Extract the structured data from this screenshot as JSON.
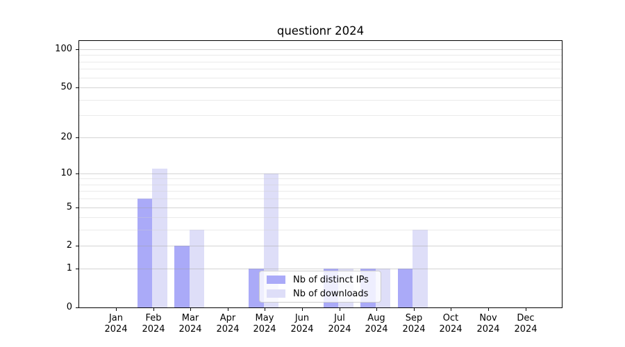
{
  "title": "questionr 2024",
  "legend": {
    "items": [
      {
        "label": "Nb of distinct IPs",
        "color": "#aaaaf8"
      },
      {
        "label": "Nb of downloads",
        "color": "#dedef8"
      }
    ]
  },
  "chart_data": {
    "type": "bar",
    "title": "questionr 2024",
    "categories": [
      "Jan",
      "Feb",
      "Mar",
      "Apr",
      "May",
      "Jun",
      "Jul",
      "Aug",
      "Sep",
      "Oct",
      "Nov",
      "Dec"
    ],
    "category_sublabel": "2024",
    "series": [
      {
        "name": "Nb of distinct IPs",
        "color": "#aaaaf8",
        "values": [
          0,
          6,
          2,
          0,
          1,
          0,
          1,
          1,
          1,
          0,
          0,
          0
        ]
      },
      {
        "name": "Nb of downloads",
        "color": "#dedef8",
        "values": [
          0,
          11,
          3,
          0,
          10,
          0,
          1,
          1,
          3,
          0,
          0,
          0
        ]
      }
    ],
    "xlabel": "",
    "ylabel": "",
    "yscale": "log1p",
    "ylim": [
      0,
      100
    ],
    "y_major_ticks": [
      100,
      50,
      20,
      10,
      5,
      2,
      1,
      0
    ],
    "y_minor_ticks": [
      3,
      4,
      6,
      7,
      8,
      9,
      30,
      40,
      60,
      70,
      80,
      90
    ],
    "grid": true,
    "grid_over_bars": true,
    "legend_position": "lower center",
    "colors": {
      "spine": "#000000",
      "grid_major": "#d4d4d4",
      "grid_minor": "#ebebeb",
      "background": "#ffffff"
    }
  }
}
